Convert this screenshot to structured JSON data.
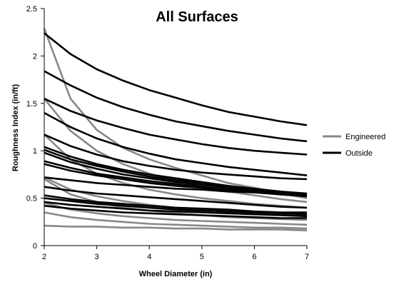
{
  "chart_data": {
    "type": "line",
    "title": "All Surfaces",
    "xlabel": "Wheel Diameter (in)",
    "ylabel": "Roughness Index (in/ft)",
    "xlim": [
      2,
      7
    ],
    "ylim": [
      0,
      2.5
    ],
    "xticks": [
      "2",
      "3",
      "4",
      "5",
      "6",
      "7"
    ],
    "yticks": [
      "0",
      "0.5",
      "1",
      "1.5",
      "2",
      "2.5"
    ],
    "x": [
      2,
      2.5,
      3,
      3.5,
      4,
      4.5,
      5,
      5.5,
      6,
      6.5,
      7
    ],
    "grid": false,
    "legend": {
      "position": "right",
      "entries": [
        {
          "name": "Engineered",
          "color": "#888888"
        },
        {
          "name": "Outside",
          "color": "#000000"
        }
      ]
    },
    "series": [
      {
        "group": "Engineered",
        "values": [
          2.29,
          1.55,
          1.22,
          1.03,
          0.91,
          0.82,
          0.74,
          0.66,
          0.61,
          0.55,
          0.5
        ]
      },
      {
        "group": "Engineered",
        "values": [
          1.55,
          1.21,
          1.0,
          0.86,
          0.76,
          0.68,
          0.62,
          0.57,
          0.53,
          0.49,
          0.46
        ]
      },
      {
        "group": "Engineered",
        "values": [
          1.17,
          0.91,
          0.76,
          0.66,
          0.59,
          0.54,
          0.5,
          0.47,
          0.44,
          0.42,
          0.4
        ]
      },
      {
        "group": "Engineered",
        "values": [
          0.72,
          0.59,
          0.52,
          0.47,
          0.43,
          0.4,
          0.38,
          0.36,
          0.34,
          0.33,
          0.32
        ]
      },
      {
        "group": "Engineered",
        "values": [
          0.7,
          0.54,
          0.46,
          0.4,
          0.37,
          0.34,
          0.32,
          0.3,
          0.29,
          0.28,
          0.27
        ]
      },
      {
        "group": "Engineered",
        "values": [
          0.45,
          0.38,
          0.34,
          0.31,
          0.29,
          0.27,
          0.26,
          0.25,
          0.24,
          0.23,
          0.22
        ]
      },
      {
        "group": "Engineered",
        "values": [
          0.35,
          0.3,
          0.27,
          0.25,
          0.23,
          0.22,
          0.21,
          0.2,
          0.19,
          0.19,
          0.18
        ]
      },
      {
        "group": "Engineered",
        "values": [
          0.21,
          0.2,
          0.2,
          0.19,
          0.19,
          0.18,
          0.18,
          0.17,
          0.17,
          0.17,
          0.16
        ]
      },
      {
        "group": "Outside",
        "values": [
          2.24,
          2.02,
          1.86,
          1.74,
          1.64,
          1.56,
          1.48,
          1.41,
          1.36,
          1.31,
          1.27
        ]
      },
      {
        "group": "Outside",
        "values": [
          1.84,
          1.69,
          1.56,
          1.46,
          1.38,
          1.31,
          1.26,
          1.21,
          1.17,
          1.13,
          1.1
        ]
      },
      {
        "group": "Outside",
        "values": [
          1.55,
          1.42,
          1.32,
          1.24,
          1.17,
          1.12,
          1.07,
          1.03,
          1.0,
          0.98,
          0.96
        ]
      },
      {
        "group": "Outside",
        "values": [
          1.4,
          1.25,
          1.13,
          1.04,
          0.97,
          0.91,
          0.87,
          0.83,
          0.8,
          0.77,
          0.74
        ]
      },
      {
        "group": "Outside",
        "values": [
          1.17,
          1.05,
          0.96,
          0.89,
          0.84,
          0.8,
          0.77,
          0.75,
          0.73,
          0.71,
          0.7
        ]
      },
      {
        "group": "Outside",
        "values": [
          1.04,
          0.94,
          0.86,
          0.8,
          0.75,
          0.71,
          0.67,
          0.63,
          0.6,
          0.57,
          0.55
        ]
      },
      {
        "group": "Outside",
        "values": [
          1.01,
          0.91,
          0.84,
          0.78,
          0.73,
          0.69,
          0.66,
          0.62,
          0.59,
          0.57,
          0.54
        ]
      },
      {
        "group": "Outside",
        "values": [
          0.98,
          0.88,
          0.81,
          0.75,
          0.71,
          0.67,
          0.64,
          0.61,
          0.58,
          0.55,
          0.53
        ]
      },
      {
        "group": "Outside",
        "values": [
          0.89,
          0.82,
          0.76,
          0.72,
          0.68,
          0.65,
          0.62,
          0.59,
          0.57,
          0.54,
          0.52
        ]
      },
      {
        "group": "Outside",
        "values": [
          0.86,
          0.79,
          0.74,
          0.7,
          0.66,
          0.63,
          0.61,
          0.58,
          0.56,
          0.54,
          0.52
        ]
      },
      {
        "group": "Outside",
        "values": [
          0.72,
          0.69,
          0.66,
          0.64,
          0.62,
          0.6,
          0.59,
          0.57,
          0.56,
          0.55,
          0.54
        ]
      },
      {
        "group": "Outside",
        "values": [
          0.62,
          0.58,
          0.55,
          0.53,
          0.51,
          0.49,
          0.47,
          0.45,
          0.43,
          0.41,
          0.4
        ]
      },
      {
        "group": "Outside",
        "values": [
          0.53,
          0.49,
          0.46,
          0.44,
          0.42,
          0.4,
          0.39,
          0.38,
          0.36,
          0.35,
          0.35
        ]
      },
      {
        "group": "Outside",
        "values": [
          0.5,
          0.47,
          0.44,
          0.42,
          0.4,
          0.38,
          0.37,
          0.36,
          0.35,
          0.34,
          0.33
        ]
      },
      {
        "group": "Outside",
        "values": [
          0.46,
          0.43,
          0.41,
          0.39,
          0.37,
          0.36,
          0.35,
          0.34,
          0.33,
          0.32,
          0.31
        ]
      },
      {
        "group": "Outside",
        "values": [
          0.42,
          0.39,
          0.37,
          0.35,
          0.34,
          0.33,
          0.32,
          0.31,
          0.3,
          0.29,
          0.29
        ]
      }
    ]
  }
}
